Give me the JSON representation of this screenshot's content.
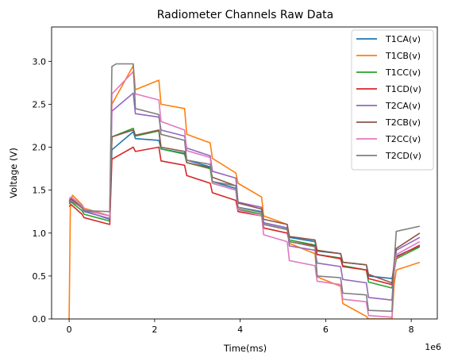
{
  "chart_data": {
    "type": "line",
    "title": "Radiometer Channels Raw Data",
    "xlabel": "Time(ms)",
    "ylabel": "Voltage (V)",
    "x_offset_label": "1e6",
    "xlim": [
      -0.41,
      8.61
    ],
    "ylim": [
      0.0,
      3.4
    ],
    "x_ticks": [
      0,
      2,
      4,
      6,
      8
    ],
    "x_tick_labels": [
      "0",
      "2",
      "4",
      "6",
      "8"
    ],
    "y_ticks": [
      0.0,
      0.5,
      1.0,
      1.5,
      2.0,
      2.5,
      3.0
    ],
    "y_tick_labels": [
      "0.0",
      "0.5",
      "1.0",
      "1.5",
      "2.0",
      "2.5",
      "3.0"
    ],
    "grid": false,
    "legend_position": "top-right",
    "series": [
      {
        "name": "T1CA(v)",
        "color": "#1f77b4",
        "x": [
          0.0,
          0.05,
          0.3,
          0.35,
          0.95,
          1.0,
          1.5,
          1.55,
          2.1,
          2.15,
          2.7,
          2.75,
          3.3,
          3.35,
          3.9,
          3.95,
          4.5,
          4.55,
          5.1,
          5.15,
          5.75,
          5.8,
          6.35,
          6.4,
          6.95,
          7.0,
          7.55,
          7.6,
          7.65,
          8.2
        ],
        "y": [
          1.36,
          1.38,
          1.3,
          1.26,
          1.16,
          1.97,
          2.18,
          2.1,
          2.08,
          1.98,
          1.93,
          1.85,
          1.77,
          1.6,
          1.52,
          1.3,
          1.25,
          1.12,
          1.06,
          0.95,
          0.9,
          0.79,
          0.76,
          0.66,
          0.63,
          0.5,
          0.47,
          0.6,
          0.73,
          0.85
        ]
      },
      {
        "name": "T1CB(v)",
        "color": "#ff7f0e",
        "x": [
          0.0,
          0.03,
          0.08,
          0.3,
          0.35,
          0.95,
          1.0,
          1.5,
          1.55,
          2.1,
          2.15,
          2.7,
          2.75,
          3.3,
          3.35,
          3.9,
          3.95,
          4.5,
          4.55,
          5.1,
          5.15,
          5.75,
          5.8,
          6.35,
          6.4,
          6.95,
          7.0,
          7.55,
          7.6,
          7.65,
          8.2
        ],
        "y": [
          0.0,
          1.35,
          1.44,
          1.33,
          1.29,
          1.2,
          2.5,
          2.95,
          2.67,
          2.78,
          2.5,
          2.45,
          2.15,
          2.05,
          1.87,
          1.7,
          1.58,
          1.42,
          1.2,
          1.1,
          0.88,
          0.76,
          0.49,
          0.38,
          0.18,
          0.03,
          0.0,
          0.0,
          0.4,
          0.57,
          0.66
        ]
      },
      {
        "name": "T1CC(v)",
        "color": "#2ca02c",
        "x": [
          0.0,
          0.05,
          0.3,
          0.35,
          0.95,
          1.0,
          1.5,
          1.55,
          2.1,
          2.15,
          2.7,
          2.75,
          3.3,
          3.35,
          3.9,
          3.95,
          4.5,
          4.55,
          5.1,
          5.15,
          5.75,
          5.8,
          6.35,
          6.4,
          6.95,
          7.0,
          7.55,
          7.6,
          7.65,
          8.2
        ],
        "y": [
          1.34,
          1.36,
          1.26,
          1.22,
          1.14,
          2.12,
          2.22,
          2.13,
          2.19,
          1.98,
          1.92,
          1.82,
          1.75,
          1.58,
          1.5,
          1.28,
          1.22,
          1.1,
          1.04,
          0.92,
          0.86,
          0.75,
          0.71,
          0.62,
          0.57,
          0.43,
          0.36,
          0.55,
          0.7,
          0.84
        ]
      },
      {
        "name": "T1CD(v)",
        "color": "#d62728",
        "x": [
          0.0,
          0.05,
          0.3,
          0.35,
          0.95,
          1.0,
          1.5,
          1.55,
          2.1,
          2.15,
          2.7,
          2.75,
          3.3,
          3.35,
          3.9,
          3.95,
          4.5,
          4.55,
          5.1,
          5.15,
          5.75,
          5.8,
          6.35,
          6.4,
          6.95,
          7.0,
          7.55,
          7.6,
          7.65,
          8.2
        ],
        "y": [
          1.31,
          1.33,
          1.22,
          1.18,
          1.1,
          1.86,
          2.0,
          1.95,
          2.0,
          1.84,
          1.79,
          1.67,
          1.58,
          1.47,
          1.38,
          1.25,
          1.2,
          1.06,
          1.0,
          0.9,
          0.85,
          0.75,
          0.7,
          0.61,
          0.57,
          0.47,
          0.4,
          0.6,
          0.72,
          0.86
        ]
      },
      {
        "name": "T2CA(v)",
        "color": "#9467bd",
        "x": [
          0.0,
          0.05,
          0.3,
          0.35,
          0.95,
          1.0,
          1.5,
          1.55,
          2.1,
          2.15,
          2.7,
          2.75,
          3.3,
          3.35,
          3.9,
          3.95,
          4.5,
          4.55,
          5.1,
          5.15,
          5.75,
          5.8,
          6.35,
          6.4,
          6.95,
          7.0,
          7.55,
          7.6,
          7.65,
          8.2
        ],
        "y": [
          1.37,
          1.39,
          1.29,
          1.25,
          1.17,
          2.42,
          2.63,
          2.39,
          2.35,
          2.2,
          2.13,
          1.99,
          1.9,
          1.72,
          1.64,
          1.36,
          1.3,
          1.12,
          1.06,
          0.85,
          0.8,
          0.65,
          0.61,
          0.46,
          0.42,
          0.25,
          0.22,
          0.6,
          0.8,
          0.95
        ]
      },
      {
        "name": "T2CB(v)",
        "color": "#8c564b",
        "x": [
          0.0,
          0.05,
          0.3,
          0.35,
          0.95,
          1.0,
          1.5,
          1.55,
          2.1,
          2.15,
          2.7,
          2.75,
          3.3,
          3.35,
          3.9,
          3.95,
          4.5,
          4.55,
          5.1,
          5.15,
          5.75,
          5.8,
          6.35,
          6.4,
          6.95,
          7.0,
          7.55,
          7.6,
          7.65,
          8.2
        ],
        "y": [
          1.38,
          1.4,
          1.3,
          1.27,
          1.2,
          2.12,
          2.2,
          2.14,
          2.2,
          2.0,
          1.95,
          1.82,
          1.76,
          1.65,
          1.55,
          1.35,
          1.28,
          1.16,
          1.1,
          0.96,
          0.92,
          0.8,
          0.76,
          0.66,
          0.63,
          0.52,
          0.42,
          0.65,
          0.82,
          1.0
        ]
      },
      {
        "name": "T2CC(v)",
        "color": "#e377c2",
        "x": [
          0.0,
          0.05,
          0.3,
          0.35,
          0.95,
          1.0,
          1.5,
          1.55,
          2.1,
          2.15,
          2.7,
          2.75,
          3.3,
          3.35,
          3.9,
          3.95,
          4.5,
          4.55,
          5.1,
          5.15,
          5.75,
          5.8,
          6.35,
          6.4,
          6.95,
          7.0,
          7.55,
          7.6,
          7.65,
          8.2
        ],
        "y": [
          1.4,
          1.42,
          1.32,
          1.28,
          1.2,
          2.62,
          2.88,
          2.62,
          2.55,
          2.3,
          2.2,
          1.96,
          1.88,
          1.58,
          1.5,
          1.27,
          1.2,
          0.98,
          0.9,
          0.68,
          0.62,
          0.44,
          0.4,
          0.23,
          0.2,
          0.04,
          0.02,
          0.55,
          0.75,
          0.9
        ]
      },
      {
        "name": "T2CD(v)",
        "color": "#7f7f7f",
        "x": [
          0.0,
          0.05,
          0.3,
          0.35,
          0.95,
          1.0,
          1.1,
          1.5,
          1.55,
          2.1,
          2.15,
          2.7,
          2.75,
          3.3,
          3.35,
          3.9,
          3.95,
          4.5,
          4.55,
          5.1,
          5.15,
          5.75,
          5.8,
          6.35,
          6.4,
          6.95,
          7.0,
          7.55,
          7.6,
          7.65,
          8.2
        ],
        "y": [
          1.35,
          1.37,
          1.3,
          1.26,
          1.25,
          2.94,
          2.97,
          2.97,
          2.45,
          2.38,
          2.15,
          2.08,
          1.85,
          1.8,
          1.6,
          1.55,
          1.3,
          1.24,
          1.1,
          1.04,
          0.9,
          0.84,
          0.5,
          0.48,
          0.3,
          0.28,
          0.1,
          0.09,
          0.65,
          1.02,
          1.08
        ]
      }
    ]
  }
}
